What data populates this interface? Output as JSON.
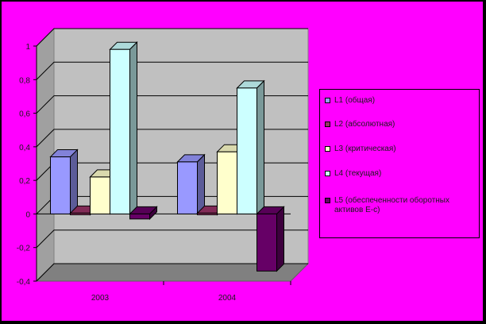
{
  "chart_data": {
    "type": "bar",
    "title": "",
    "xlabel": "",
    "ylabel": "",
    "categories": [
      "2003",
      "2004"
    ],
    "ylim": [
      -0.4,
      1
    ],
    "yticks": [
      "1",
      "0,8",
      "0,6",
      "0,4",
      "0,2",
      "0",
      "-0,2",
      "-0,4"
    ],
    "grid": true,
    "legend_position": "right",
    "series": [
      {
        "name": "L1 (общая)",
        "color": "#9999ff",
        "values": [
          0.34,
          0.31
        ]
      },
      {
        "name": "L2 (абсолютная)",
        "color": "#993366",
        "values": [
          0.0,
          0.0
        ]
      },
      {
        "name": "L3 (критическая)",
        "color": "#ffffcc",
        "values": [
          0.22,
          0.37
        ]
      },
      {
        "name": "L4 (текущая)",
        "color": "#ccffff",
        "values": [
          0.98,
          0.75
        ]
      },
      {
        "name": "L5 (обеспеченности оборотных активов E-с)",
        "color": "#660066",
        "values": [
          -0.03,
          -0.34
        ]
      }
    ],
    "colors": {
      "background": "#ff00ff",
      "plot_wall": "#c0c0c0",
      "floor": "#808080"
    }
  }
}
